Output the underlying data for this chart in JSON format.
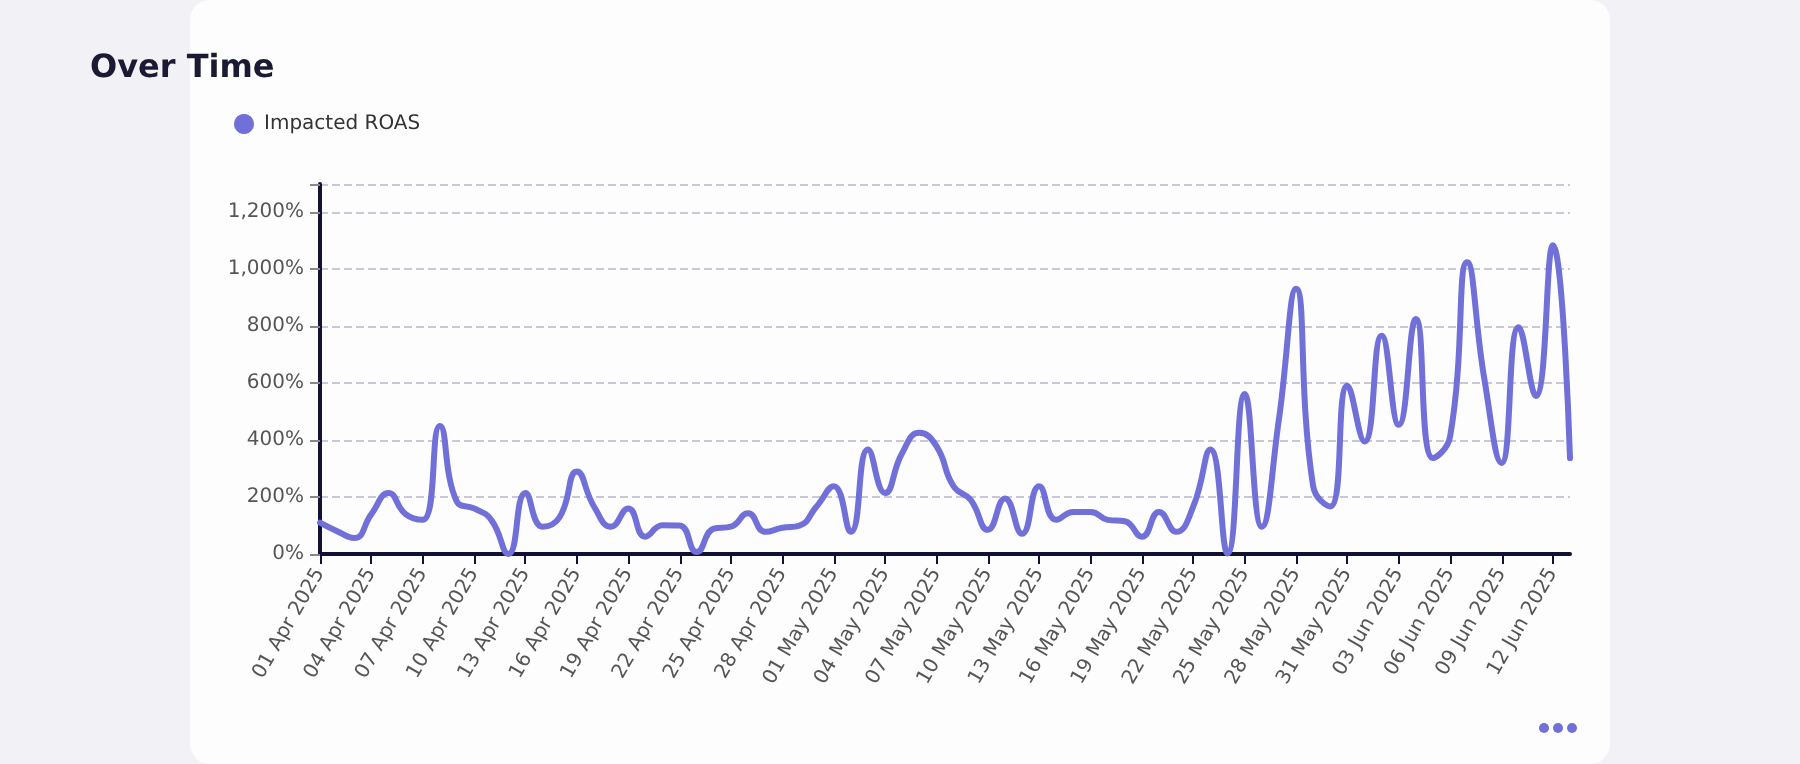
{
  "chart_data": {
    "type": "line",
    "title": "Over Time",
    "x": [
      "2025-04-01",
      "2025-04-02",
      "2025-04-03",
      "2025-04-04",
      "2025-04-05",
      "2025-04-06",
      "2025-04-07",
      "2025-04-08",
      "2025-04-09",
      "2025-04-10",
      "2025-04-11",
      "2025-04-12",
      "2025-04-13",
      "2025-04-14",
      "2025-04-15",
      "2025-04-16",
      "2025-04-17",
      "2025-04-18",
      "2025-04-19",
      "2025-04-20",
      "2025-04-21",
      "2025-04-22",
      "2025-04-23",
      "2025-04-24",
      "2025-04-25",
      "2025-04-26",
      "2025-04-27",
      "2025-04-28",
      "2025-04-29",
      "2025-04-30",
      "2025-05-01",
      "2025-05-02",
      "2025-05-03",
      "2025-05-04",
      "2025-05-05",
      "2025-05-06",
      "2025-05-07",
      "2025-05-08",
      "2025-05-09",
      "2025-05-10",
      "2025-05-11",
      "2025-05-12",
      "2025-05-13",
      "2025-05-14",
      "2025-05-15",
      "2025-05-16",
      "2025-05-17",
      "2025-05-18",
      "2025-05-19",
      "2025-05-20",
      "2025-05-21",
      "2025-05-22",
      "2025-05-23",
      "2025-05-24",
      "2025-05-25",
      "2025-05-26",
      "2025-05-27",
      "2025-05-28",
      "2025-05-29",
      "2025-05-30",
      "2025-05-31",
      "2025-06-01",
      "2025-06-02",
      "2025-06-03",
      "2025-06-04",
      "2025-06-05",
      "2025-06-06",
      "2025-06-07",
      "2025-06-08",
      "2025-06-09",
      "2025-06-10",
      "2025-06-11",
      "2025-06-12",
      "2025-06-13"
    ],
    "series": [
      {
        "name": "Impacted ROAS",
        "color": "#7070d8",
        "values": [
          110,
          80,
          56,
          140,
          214,
          140,
          120,
          450,
          183,
          160,
          120,
          0,
          214,
          96,
          130,
          290,
          167,
          96,
          160,
          61,
          101,
          100,
          7,
          89,
          96,
          143,
          78,
          92,
          100,
          167,
          238,
          78,
          367,
          214,
          355,
          426,
          379,
          238,
          190,
          85,
          195,
          71,
          238,
          120,
          148,
          148,
          120,
          115,
          61,
          148,
          78,
          167,
          367,
          2,
          562,
          96,
          473,
          932,
          238,
          167,
          591,
          395,
          767,
          454,
          826,
          337,
          414,
          1025,
          614,
          320,
          797,
          555,
          1085,
          337
        ]
      }
    ],
    "xlim": [
      "2025-04-01",
      "2025-06-13"
    ],
    "xticks": [
      {
        "value": "2025-04-01",
        "label": "01 Apr 2025"
      },
      {
        "value": "2025-04-04",
        "label": "04 Apr 2025"
      },
      {
        "value": "2025-04-07",
        "label": "07 Apr 2025"
      },
      {
        "value": "2025-04-10",
        "label": "10 Apr 2025"
      },
      {
        "value": "2025-04-13",
        "label": "13 Apr 2025"
      },
      {
        "value": "2025-04-16",
        "label": "16 Apr 2025"
      },
      {
        "value": "2025-04-19",
        "label": "19 Apr 2025"
      },
      {
        "value": "2025-04-22",
        "label": "22 Apr 2025"
      },
      {
        "value": "2025-04-25",
        "label": "25 Apr 2025"
      },
      {
        "value": "2025-04-28",
        "label": "28 Apr 2025"
      },
      {
        "value": "2025-05-01",
        "label": "01 May 2025"
      },
      {
        "value": "2025-05-04",
        "label": "04 May 2025"
      },
      {
        "value": "2025-05-07",
        "label": "07 May 2025"
      },
      {
        "value": "2025-05-10",
        "label": "10 May 2025"
      },
      {
        "value": "2025-05-13",
        "label": "13 May 2025"
      },
      {
        "value": "2025-05-16",
        "label": "16 May 2025"
      },
      {
        "value": "2025-05-19",
        "label": "19 May 2025"
      },
      {
        "value": "2025-05-22",
        "label": "22 May 2025"
      },
      {
        "value": "2025-05-25",
        "label": "25 May 2025"
      },
      {
        "value": "2025-05-28",
        "label": "28 May 2025"
      },
      {
        "value": "2025-05-31",
        "label": "31 May 2025"
      },
      {
        "value": "2025-06-03",
        "label": "03 Jun 2025"
      },
      {
        "value": "2025-06-06",
        "label": "06 Jun 2025"
      },
      {
        "value": "2025-06-09",
        "label": "09 Jun 2025"
      },
      {
        "value": "2025-06-12",
        "label": "12 Jun 2025"
      }
    ],
    "ylim": [
      0,
      1300
    ],
    "yticks": [
      {
        "value": 0,
        "label": "0%"
      },
      {
        "value": 200,
        "label": "200%"
      },
      {
        "value": 400,
        "label": "400%"
      },
      {
        "value": 600,
        "label": "600%"
      },
      {
        "value": 800,
        "label": "800%"
      },
      {
        "value": 1000,
        "label": "1,000%"
      },
      {
        "value": 1200,
        "label": "1,200%"
      },
      {
        "value": 1300,
        "label": null
      }
    ],
    "grid": "y",
    "legend": "top left",
    "marker": "none",
    "line_style": "solid"
  }
}
